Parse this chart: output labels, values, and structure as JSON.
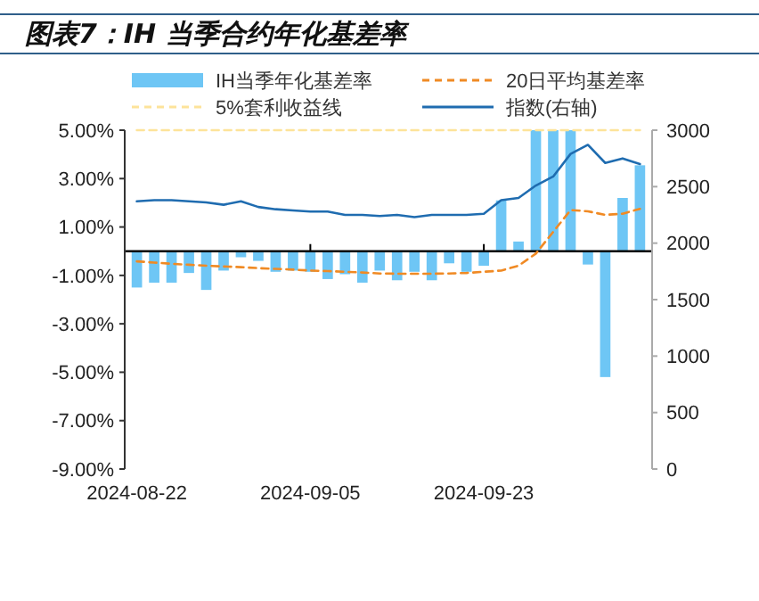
{
  "chart_data": {
    "type": "bar",
    "title": "图表7：IH 当季合约年化基差率",
    "categories": [
      "2024-08-22",
      null,
      null,
      null,
      null,
      null,
      null,
      null,
      null,
      null,
      "2024-09-05",
      null,
      null,
      null,
      null,
      null,
      null,
      null,
      null,
      null,
      "2024-09-23",
      null,
      null,
      null,
      null,
      null,
      null,
      null,
      null,
      null
    ],
    "series": [
      {
        "name": "IH当季年化基差率",
        "color": "#6ec6f5",
        "values": [
          -1.5,
          -1.3,
          -1.3,
          -0.9,
          -1.6,
          -0.8,
          -0.25,
          -0.4,
          -0.85,
          -0.8,
          -0.85,
          -1.15,
          -0.95,
          -1.3,
          -0.8,
          -1.2,
          -0.85,
          -1.2,
          -0.5,
          -0.85,
          -0.6,
          2.1,
          0.4,
          5.0,
          5.0,
          5.0,
          -0.55,
          -5.2,
          2.2,
          3.55
        ]
      },
      {
        "name": "20日平均基差率",
        "type": "line",
        "line_style": "dashed",
        "color": "#f08a24",
        "values": [
          -0.42,
          -0.47,
          -0.52,
          -0.56,
          -0.6,
          -0.63,
          -0.66,
          -0.7,
          -0.73,
          -0.76,
          -0.8,
          -0.82,
          -0.85,
          -0.88,
          -0.92,
          -0.93,
          -0.93,
          -0.93,
          -0.92,
          -0.9,
          -0.85,
          -0.8,
          -0.6,
          -0.1,
          0.8,
          1.7,
          1.65,
          1.5,
          1.55,
          1.75
        ]
      },
      {
        "name": "5%套利收益线",
        "type": "line",
        "line_style": "dashed",
        "color": "#fde39a",
        "values": [
          5,
          5,
          5,
          5,
          5,
          5,
          5,
          5,
          5,
          5,
          5,
          5,
          5,
          5,
          5,
          5,
          5,
          5,
          5,
          5,
          5,
          5,
          5,
          5,
          5,
          5,
          5,
          5,
          5,
          5
        ]
      },
      {
        "name": "指数(右轴)",
        "type": "line",
        "line_style": "solid",
        "axis": "y2",
        "color": "#1f6cb0",
        "values": [
          2370,
          2380,
          2380,
          2370,
          2360,
          2340,
          2370,
          2320,
          2300,
          2290,
          2280,
          2280,
          2250,
          2250,
          2240,
          2250,
          2230,
          2250,
          2250,
          2250,
          2260,
          2380,
          2400,
          2510,
          2590,
          2790,
          2870,
          2710,
          2750,
          2700
        ]
      }
    ],
    "ylim": [
      -9,
      5
    ],
    "yticks": [
      {
        "value": 5,
        "label": "5.00%"
      },
      {
        "value": 3,
        "label": "3.00%"
      },
      {
        "value": 1,
        "label": "1.00%"
      },
      {
        "value": -1,
        "label": "-1.00%"
      },
      {
        "value": -3,
        "label": "-3.00%"
      },
      {
        "value": -5,
        "label": "-5.00%"
      },
      {
        "value": -7,
        "label": "-7.00%"
      },
      {
        "value": -9,
        "label": "-9.00%"
      }
    ],
    "y2lim": [
      0,
      3000
    ],
    "y2ticks": [
      0,
      500,
      1000,
      1500,
      2000,
      2500,
      3000
    ],
    "grid": false,
    "legend": "top",
    "marker": "none"
  }
}
